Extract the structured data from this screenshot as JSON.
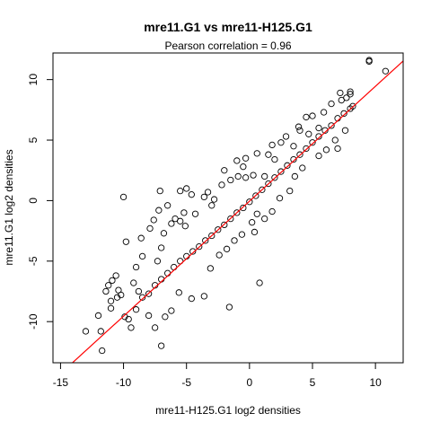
{
  "chart_data": {
    "type": "scatter",
    "title": "mre11.G1 vs mre11-H125.G1",
    "subtitle": "Pearson correlation =  0.96",
    "xlabel": "mre11-H125.G1 log2 densities",
    "ylabel": "mre11.G1 log2 densities",
    "xlim": [
      -15.6,
      12.2
    ],
    "ylim": [
      -13.4,
      12.2
    ],
    "x_ticks": [
      -15,
      -10,
      -5,
      0,
      5,
      10
    ],
    "y_ticks": [
      -10,
      -5,
      0,
      5,
      10
    ],
    "x_tick_labels": [
      "-15",
      "-10",
      "-5",
      "0",
      "5",
      "10"
    ],
    "y_tick_labels": [
      "-10",
      "-5",
      "0",
      "5",
      "10"
    ],
    "grid": false,
    "legend": "none",
    "point_style": "open-circle",
    "point_color": "#000000",
    "fit_line": {
      "slope": 0.95,
      "intercept": -0.05,
      "color": "#ff0000"
    },
    "main_cloud_points": [
      [
        -9.0,
        -9.0
      ],
      [
        -8.5,
        -8.0
      ],
      [
        -8.0,
        -7.7
      ],
      [
        -7.5,
        -7.0
      ],
      [
        -7.0,
        -6.5
      ],
      [
        -6.5,
        -6.0
      ],
      [
        -6.0,
        -5.5
      ],
      [
        -5.5,
        -5.0
      ],
      [
        -5.0,
        -4.6
      ],
      [
        -4.5,
        -4.2
      ],
      [
        -4.0,
        -3.8
      ],
      [
        -3.5,
        -3.3
      ],
      [
        -3.0,
        -2.9
      ],
      [
        -2.5,
        -2.4
      ],
      [
        -2.0,
        -2.0
      ],
      [
        -1.5,
        -1.5
      ],
      [
        -1.0,
        -1.0
      ],
      [
        -0.5,
        -0.6
      ],
      [
        0.0,
        -0.1
      ],
      [
        0.5,
        0.4
      ],
      [
        1.0,
        0.9
      ],
      [
        1.5,
        1.4
      ],
      [
        2.0,
        1.9
      ],
      [
        2.5,
        2.4
      ],
      [
        3.0,
        2.9
      ],
      [
        3.5,
        3.4
      ],
      [
        4.0,
        3.8
      ],
      [
        4.5,
        4.3
      ],
      [
        5.0,
        4.8
      ],
      [
        5.5,
        5.3
      ],
      [
        6.0,
        5.8
      ],
      [
        6.5,
        6.2
      ],
      [
        7.0,
        6.8
      ],
      [
        7.5,
        7.2
      ],
      [
        8.0,
        7.6
      ]
    ],
    "outlier_points": [
      [
        -13.0,
        -10.8
      ],
      [
        -11.8,
        -10.8
      ],
      [
        -11.7,
        -12.4
      ],
      [
        -11.0,
        -8.9
      ],
      [
        -12.0,
        -9.5
      ],
      [
        -10.5,
        -8.0
      ],
      [
        -10.2,
        -7.8
      ],
      [
        -9.6,
        -9.8
      ],
      [
        -10.0,
        0.3
      ],
      [
        -7.0,
        -12.0
      ],
      [
        -7.6,
        -1.6
      ],
      [
        -7.2,
        -0.8
      ],
      [
        -7.3,
        -5.0
      ],
      [
        -7.0,
        -3.9
      ],
      [
        -7.1,
        0.8
      ],
      [
        -6.5,
        -0.4
      ],
      [
        -5.9,
        -1.5
      ],
      [
        -5.5,
        0.8
      ],
      [
        -5.2,
        -1.0
      ],
      [
        -5.0,
        1.0
      ],
      [
        -5.1,
        -2.1
      ],
      [
        -4.6,
        0.5
      ],
      [
        -3.6,
        0.3
      ],
      [
        -3.0,
        -0.4
      ],
      [
        -2.8,
        0.1
      ],
      [
        -2.0,
        2.5
      ],
      [
        -1.6,
        -8.8
      ],
      [
        -1.0,
        3.3
      ],
      [
        -0.9,
        2.0
      ],
      [
        -0.5,
        2.8
      ],
      [
        -0.3,
        1.9
      ],
      [
        0.3,
        2.1
      ],
      [
        0.8,
        -6.8
      ],
      [
        0.6,
        -1.1
      ],
      [
        0.2,
        -1.8
      ],
      [
        1.2,
        2.0
      ],
      [
        1.5,
        3.8
      ],
      [
        2.0,
        3.4
      ],
      [
        2.5,
        4.8
      ],
      [
        3.5,
        4.5
      ],
      [
        4.0,
        5.8
      ],
      [
        4.7,
        5.5
      ],
      [
        5.0,
        7.0
      ],
      [
        5.5,
        6.0
      ],
      [
        7.0,
        4.3
      ],
      [
        7.3,
        8.3
      ],
      [
        7.7,
        8.5
      ],
      [
        8.0,
        8.8
      ],
      [
        8.2,
        7.8
      ],
      [
        9.5,
        11.5
      ],
      [
        9.5,
        11.6
      ],
      [
        10.8,
        10.7
      ],
      [
        -8.8,
        -7.5
      ],
      [
        -9.2,
        -6.8
      ],
      [
        -8.0,
        -9.5
      ],
      [
        -9.0,
        -5.5
      ],
      [
        -8.5,
        -4.6
      ],
      [
        -10.6,
        -6.2
      ],
      [
        -10.9,
        -6.6
      ],
      [
        -11.2,
        -7.0
      ],
      [
        -11.4,
        -7.5
      ],
      [
        -11.0,
        -8.3
      ],
      [
        -10.4,
        -7.4
      ],
      [
        -9.9,
        -9.6
      ],
      [
        -9.4,
        -10.5
      ],
      [
        -7.5,
        -10.5
      ],
      [
        -6.7,
        -9.6
      ],
      [
        -6.2,
        -9.1
      ],
      [
        -5.6,
        -7.6
      ],
      [
        -4.6,
        -8.1
      ],
      [
        -3.6,
        -7.9
      ],
      [
        -3.1,
        -5.6
      ],
      [
        -2.4,
        -4.5
      ],
      [
        -1.8,
        -4.0
      ],
      [
        -1.2,
        -3.3
      ],
      [
        -0.6,
        -2.8
      ],
      [
        0.4,
        -2.6
      ],
      [
        1.2,
        -1.5
      ],
      [
        1.8,
        -0.9
      ],
      [
        2.4,
        0.2
      ],
      [
        3.2,
        0.8
      ],
      [
        3.6,
        2.0
      ],
      [
        4.2,
        2.7
      ],
      [
        5.5,
        3.7
      ],
      [
        6.1,
        4.2
      ],
      [
        6.8,
        5.0
      ],
      [
        7.6,
        5.8
      ],
      [
        -9.8,
        -3.4
      ],
      [
        -8.6,
        -3.1
      ],
      [
        -7.9,
        -2.3
      ],
      [
        -6.8,
        -2.7
      ],
      [
        -6.2,
        -1.9
      ],
      [
        -5.5,
        -1.7
      ],
      [
        -4.3,
        -1.1
      ],
      [
        -3.3,
        0.7
      ],
      [
        -2.2,
        1.3
      ],
      [
        -1.5,
        1.7
      ],
      [
        -0.3,
        3.5
      ],
      [
        0.6,
        3.9
      ],
      [
        1.8,
        4.6
      ],
      [
        2.9,
        5.3
      ],
      [
        3.9,
        6.1
      ],
      [
        4.5,
        6.9
      ],
      [
        5.9,
        7.3
      ],
      [
        6.5,
        8.0
      ],
      [
        7.2,
        8.9
      ],
      [
        8.0,
        9.0
      ]
    ]
  }
}
